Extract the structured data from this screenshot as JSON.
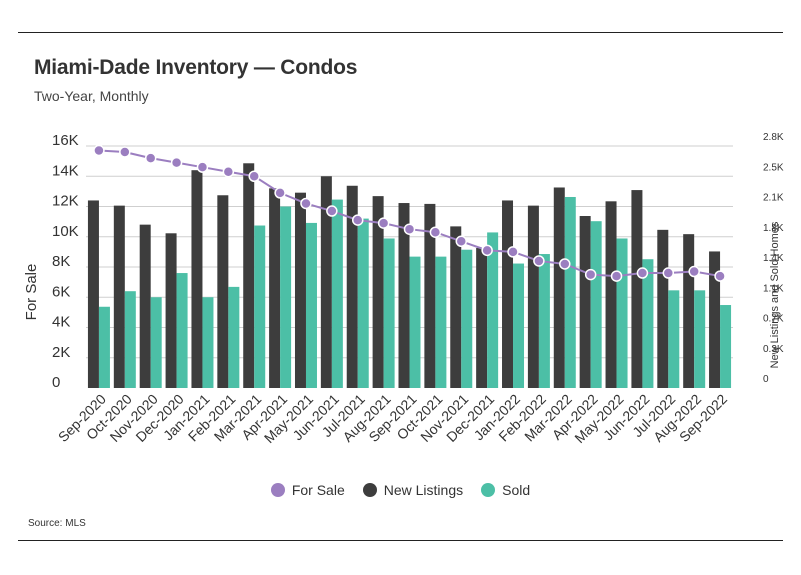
{
  "title": "Miami-Dade Inventory — Condos",
  "subtitle": "Two-Year, Monthly",
  "source": "Source:  MLS",
  "colors": {
    "for_sale": "#9b7ec0",
    "new_listings": "#3d3d3d",
    "sold": "#4cbfa6",
    "grid": "#cfcfcf"
  },
  "chart_data": {
    "type": "bar",
    "categories": [
      "Sep-2020",
      "Oct-2020",
      "Nov-2020",
      "Dec-2020",
      "Jan-2021",
      "Feb-2021",
      "Mar-2021",
      "Apr-2021",
      "May-2021",
      "Jun-2021",
      "Jul-2021",
      "Aug-2021",
      "Sep-2021",
      "Oct-2021",
      "Nov-2021",
      "Dec-2021",
      "Jan-2022",
      "Feb-2022",
      "Mar-2022",
      "Apr-2022",
      "May-2022",
      "Jun-2022",
      "Jul-2022",
      "Aug-2022",
      "Sep-2022"
    ],
    "series": [
      {
        "name": "For Sale",
        "type": "line",
        "axis": "left",
        "values": [
          15700,
          15600,
          15200,
          14900,
          14600,
          14300,
          14000,
          12900,
          12200,
          11700,
          11100,
          10900,
          10500,
          10300,
          9700,
          9100,
          9000,
          8400,
          8200,
          7500,
          7400,
          7600,
          7600,
          7700,
          7400
        ]
      },
      {
        "name": "New Listings",
        "type": "bar",
        "axis": "right",
        "values": [
          2170,
          2110,
          1890,
          1790,
          2520,
          2230,
          2600,
          2310,
          2260,
          2450,
          2340,
          2220,
          2140,
          2130,
          1870,
          1620,
          2170,
          2110,
          2320,
          1990,
          2160,
          2290,
          1830,
          1780,
          1580
        ]
      },
      {
        "name": "Sold",
        "type": "bar",
        "axis": "right",
        "values": [
          940,
          1120,
          1050,
          1330,
          1050,
          1170,
          1880,
          2100,
          1910,
          2180,
          1960,
          1730,
          1520,
          1520,
          1600,
          1800,
          1440,
          1550,
          2210,
          1930,
          1730,
          1490,
          1130,
          1130,
          960
        ]
      }
    ],
    "title": "Miami-Dade Inventory — Condos",
    "xlabel": "",
    "ylabel": "For Sale",
    "y2label": "New Listings and Sold Homes",
    "ylim": [
      0,
      16000
    ],
    "y2lim": [
      0,
      2800
    ],
    "yticks": [
      "0",
      "2K",
      "4K",
      "6K",
      "8K",
      "10K",
      "12K",
      "14K",
      "16K"
    ],
    "y2ticks": [
      "0",
      "0.3K",
      "0.7K",
      "1.1K",
      "1.4K",
      "1.8K",
      "2.1K",
      "2.5K",
      "2.8K"
    ],
    "grid": true,
    "legend": "bottom"
  }
}
